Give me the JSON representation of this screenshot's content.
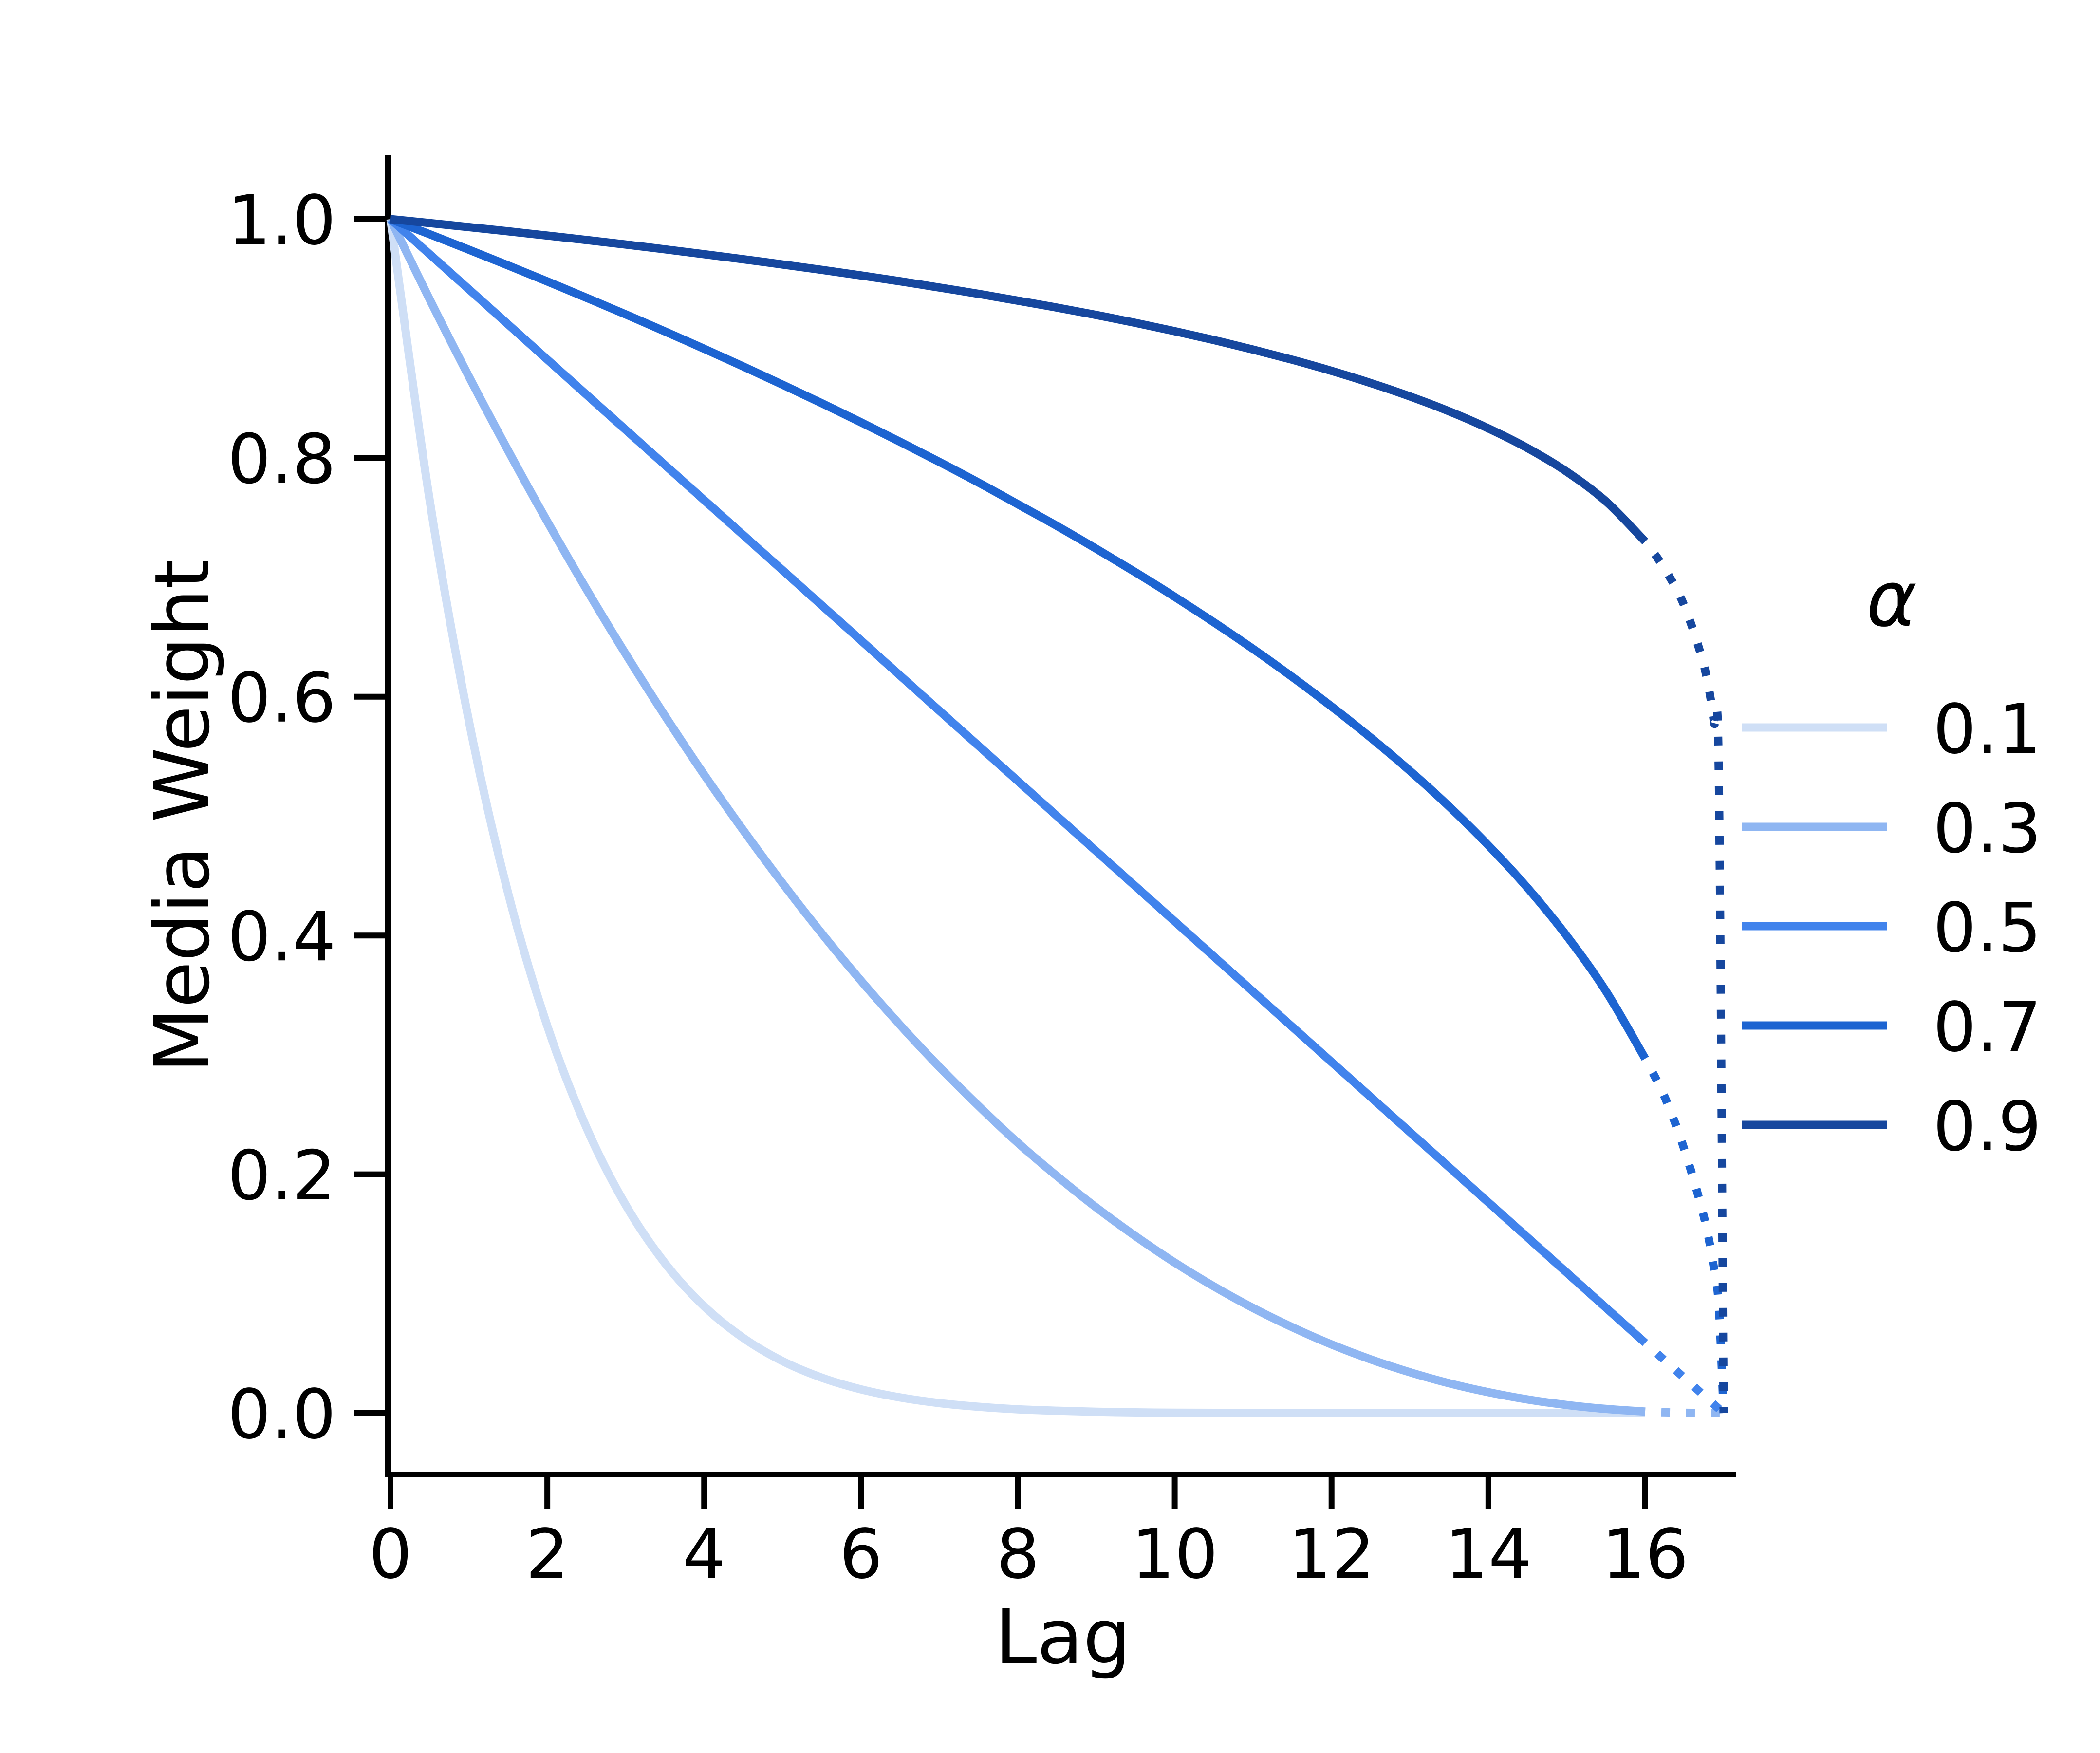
{
  "figure": {
    "background": "#ffffff",
    "text_color": "#000000"
  },
  "chart_data": {
    "type": "line",
    "title": "",
    "xlabel": "Lag",
    "ylabel": "Media Weight",
    "x_tick_labels": [
      "0",
      "2",
      "4",
      "6",
      "8",
      "10",
      "12",
      "14",
      "16"
    ],
    "x_tick_values": [
      0,
      2,
      4,
      6,
      8,
      10,
      12,
      14,
      16
    ],
    "y_tick_labels": [
      "0.0",
      "0.2",
      "0.4",
      "0.6",
      "0.8",
      "1.0"
    ],
    "y_tick_values": [
      0.0,
      0.2,
      0.4,
      0.6,
      0.8,
      1.0
    ],
    "xlim": [
      0,
      17.15
    ],
    "ylim": [
      -0.05,
      1.05
    ],
    "grid": false,
    "legend": {
      "title": "α",
      "position": "center right, outside axes",
      "entries": [
        "0.1",
        "0.3",
        "0.5",
        "0.7",
        "0.9"
      ]
    },
    "style_note": "each curve is solid from lag 0 to 16 and dotted from lag 16 to 17; all curves reach 0 at lag 17",
    "x_solid": [
      0,
      0.5,
      1,
      1.5,
      2,
      2.5,
      3,
      3.5,
      4,
      4.5,
      5,
      5.5,
      6,
      6.5,
      7,
      7.5,
      8,
      8.5,
      9,
      9.5,
      10,
      10.5,
      11,
      11.5,
      12,
      12.5,
      13,
      13.5,
      14,
      14.5,
      15,
      15.5,
      16
    ],
    "x_dotted": [
      16,
      16.25,
      16.5,
      16.75,
      16.875,
      16.9375,
      17
    ],
    "series": [
      {
        "name": "0.1",
        "color": "#cfdff6",
        "solid_y": [
          1.0,
          0.7644,
          0.5795,
          0.4355,
          0.3242,
          0.2389,
          0.1742,
          0.1256,
          0.0894,
          0.0629,
          0.0435,
          0.0297,
          0.0199,
          0.0131,
          0.0084,
          0.0053,
          0.0032,
          0.002,
          0.0011,
          0.0006,
          0.0003,
          0.0002,
          0.0001,
          0.0,
          0.0,
          0.0,
          0.0,
          0.0,
          0.0,
          0.0,
          0.0,
          0.0,
          0.0
        ],
        "dotted_y": [
          0.0,
          0.0,
          0.0,
          0.0,
          0.0,
          0.0,
          0.0
        ]
      },
      {
        "name": "0.3",
        "color": "#8fb6f2",
        "solid_y": [
          1.0,
          0.9327,
          0.8681,
          0.8061,
          0.7467,
          0.6899,
          0.6357,
          0.584,
          0.5347,
          0.488,
          0.4437,
          0.4017,
          0.3621,
          0.3249,
          0.2899,
          0.2572,
          0.2264,
          0.1984,
          0.1722,
          0.1482,
          0.1261,
          0.1061,
          0.088,
          0.0719,
          0.0575,
          0.045,
          0.0342,
          0.025,
          0.0175,
          0.0114,
          0.0068,
          0.0035,
          0.0013
        ],
        "dotted_y": [
          0.0013,
          0.0007,
          0.0003,
          0.0001,
          0.0,
          0.0,
          0.0
        ]
      },
      {
        "name": "0.5",
        "color": "#4183ec",
        "solid_y": [
          1.0,
          0.9706,
          0.9412,
          0.9118,
          0.8824,
          0.8529,
          0.8235,
          0.7941,
          0.7647,
          0.7353,
          0.7059,
          0.6765,
          0.6471,
          0.6176,
          0.5882,
          0.5588,
          0.5294,
          0.5,
          0.4706,
          0.4412,
          0.4118,
          0.3824,
          0.3529,
          0.3235,
          0.2941,
          0.2647,
          0.2353,
          0.2059,
          0.1765,
          0.1471,
          0.1176,
          0.0882,
          0.0588
        ],
        "dotted_y": [
          0.0588,
          0.0441,
          0.0294,
          0.0147,
          0.0074,
          0.0037,
          0.0
        ]
      },
      {
        "name": "0.7",
        "color": "#1d64d1",
        "solid_y": [
          1.0,
          0.9873,
          0.9744,
          0.9612,
          0.9478,
          0.9341,
          0.9202,
          0.9059,
          0.8914,
          0.8765,
          0.8613,
          0.8458,
          0.8298,
          0.8134,
          0.7966,
          0.7793,
          0.7612,
          0.743,
          0.7239,
          0.7042,
          0.6837,
          0.6623,
          0.64,
          0.6165,
          0.5918,
          0.5657,
          0.5379,
          0.508,
          0.4755,
          0.4398,
          0.3996,
          0.3533,
          0.2969
        ],
        "dotted_y": [
          0.2969,
          0.2645,
          0.2206,
          0.1639,
          0.1218,
          0.0905,
          0.0
        ]
      },
      {
        "name": "0.9",
        "color": "#16479e",
        "solid_y": [
          1.0,
          0.9967,
          0.9933,
          0.9898,
          0.9862,
          0.9825,
          0.9787,
          0.9747,
          0.9706,
          0.9664,
          0.962,
          0.9575,
          0.9528,
          0.9479,
          0.9427,
          0.9374,
          0.9317,
          0.9259,
          0.9197,
          0.9131,
          0.9061,
          0.8987,
          0.8907,
          0.8822,
          0.8729,
          0.8627,
          0.8515,
          0.839,
          0.8247,
          0.8082,
          0.7884,
          0.7636,
          0.73
        ],
        "dotted_y": [
          0.73,
          0.7069,
          0.6758,
          0.6257,
          0.5794,
          0.5364,
          0.0
        ]
      }
    ]
  }
}
